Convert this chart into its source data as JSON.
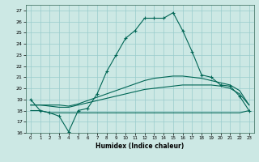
{
  "xlabel": "Humidex (Indice chaleur)",
  "bg_color": "#cce8e4",
  "grid_color": "#99cccc",
  "line_color": "#006655",
  "xlim": [
    -0.5,
    23.5
  ],
  "ylim": [
    16,
    27.5
  ],
  "xticks": [
    0,
    1,
    2,
    3,
    4,
    5,
    6,
    7,
    8,
    9,
    10,
    11,
    12,
    13,
    14,
    15,
    16,
    17,
    18,
    19,
    20,
    21,
    22,
    23
  ],
  "yticks": [
    16,
    17,
    18,
    19,
    20,
    21,
    22,
    23,
    24,
    25,
    26,
    27
  ],
  "line1_x": [
    0,
    1,
    2,
    3,
    4,
    5,
    6,
    7,
    8,
    9,
    10,
    11,
    12,
    13,
    14,
    15,
    16,
    17,
    18,
    19,
    20,
    21,
    22,
    23
  ],
  "line1_y": [
    19.0,
    18.0,
    17.8,
    17.5,
    16.1,
    18.0,
    18.2,
    19.5,
    21.5,
    23.0,
    24.5,
    25.2,
    26.3,
    26.3,
    26.3,
    26.8,
    25.2,
    23.3,
    21.2,
    21.0,
    20.3,
    20.2,
    19.3,
    18.0
  ],
  "line2_x": [
    0,
    1,
    2,
    3,
    4,
    5,
    6,
    7,
    8,
    9,
    10,
    11,
    12,
    13,
    14,
    15,
    16,
    17,
    18,
    19,
    20,
    21,
    22,
    23
  ],
  "line2_y": [
    18.0,
    18.0,
    17.8,
    17.8,
    17.8,
    17.8,
    17.8,
    17.8,
    17.8,
    17.8,
    17.8,
    17.8,
    17.8,
    17.8,
    17.8,
    17.8,
    17.8,
    17.8,
    17.8,
    17.8,
    17.8,
    17.8,
    17.8,
    18.0
  ],
  "line3_x": [
    0,
    1,
    2,
    3,
    4,
    5,
    6,
    7,
    8,
    9,
    10,
    11,
    12,
    13,
    14,
    15,
    16,
    17,
    18,
    19,
    20,
    21,
    22,
    23
  ],
  "line3_y": [
    18.5,
    18.5,
    18.4,
    18.3,
    18.3,
    18.5,
    18.7,
    18.9,
    19.1,
    19.3,
    19.5,
    19.7,
    19.9,
    20.0,
    20.1,
    20.2,
    20.3,
    20.3,
    20.3,
    20.3,
    20.2,
    20.0,
    19.5,
    18.5
  ],
  "line4_x": [
    0,
    1,
    2,
    3,
    4,
    5,
    6,
    7,
    8,
    9,
    10,
    11,
    12,
    13,
    14,
    15,
    16,
    17,
    18,
    19,
    20,
    21,
    22,
    23
  ],
  "line4_y": [
    18.5,
    18.5,
    18.5,
    18.5,
    18.4,
    18.6,
    18.9,
    19.2,
    19.5,
    19.8,
    20.1,
    20.4,
    20.7,
    20.9,
    21.0,
    21.1,
    21.1,
    21.0,
    20.9,
    20.7,
    20.5,
    20.3,
    19.8,
    18.5
  ]
}
